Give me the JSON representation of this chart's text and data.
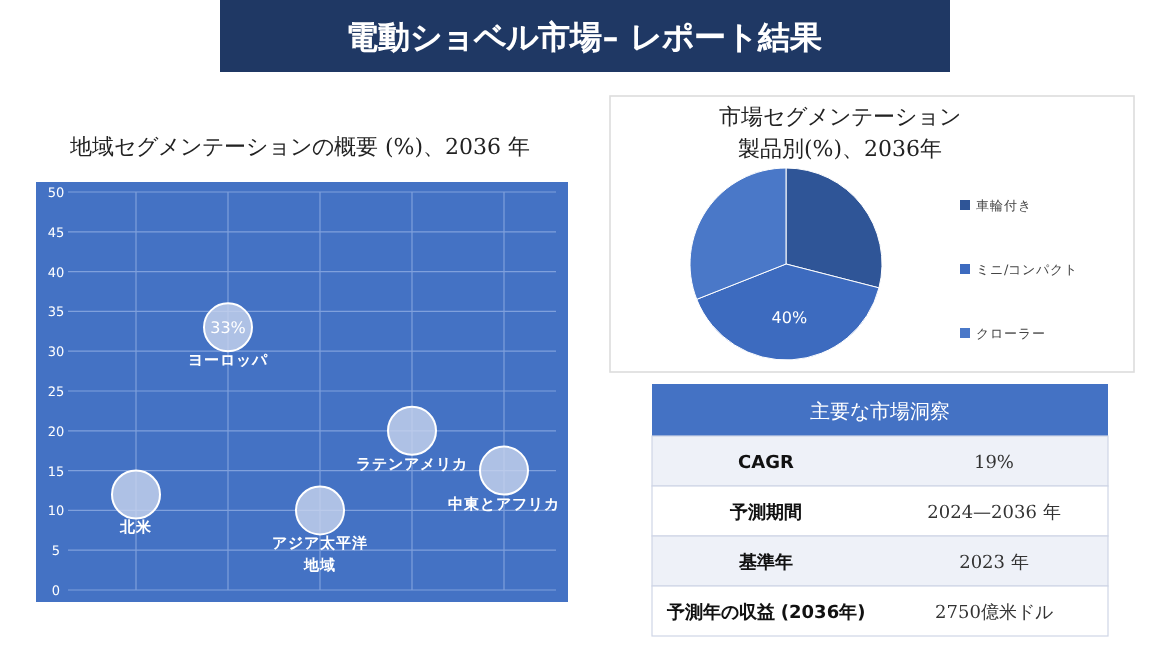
{
  "chart_data": [
    {
      "type": "other",
      "title": "電動ショベル市場– レポート結果"
    },
    {
      "type": "scatter",
      "title": "地域セグメンテーションの概要 (%)、2036 年",
      "categories": [
        null,
        null,
        null,
        null,
        null
      ],
      "series": [
        {
          "name": "北米",
          "color": "#c9d5ee",
          "values": [
            12,
            null,
            null,
            null,
            null
          ]
        },
        {
          "name": "ヨーロッパ",
          "color": "#c9d5ee",
          "values": [
            null,
            33,
            null,
            null,
            null
          ],
          "value_labels": [
            null,
            "33%",
            null,
            null,
            null
          ]
        },
        {
          "name": "アジア太平洋地域",
          "color": "#c9d5ee",
          "values": [
            null,
            null,
            10,
            null,
            null
          ]
        },
        {
          "name": "ラテンアメリカ",
          "color": "#c9d5ee",
          "values": [
            null,
            null,
            null,
            20,
            null
          ]
        },
        {
          "name": "中東とアフリカ",
          "color": "#c9d5ee",
          "values": [
            null,
            null,
            null,
            null,
            15
          ]
        }
      ],
      "ylim": [
        0,
        50
      ],
      "yticks": [
        0,
        5,
        10,
        15,
        20,
        25,
        30,
        35,
        40,
        45,
        50
      ],
      "grid": true,
      "marker": "circle"
    },
    {
      "type": "pie",
      "title": "市場セグメンテーション",
      "subtitle": "製品別(%)、2036年",
      "categories": [
        "車輪付き",
        "ミニ/コンパクト",
        "クローラー"
      ],
      "values": [
        29,
        40,
        31
      ],
      "colors": [
        "#2f5597",
        "#3d6bbf",
        "#4a78c8"
      ],
      "value_labels": [
        null,
        "40%",
        null
      ],
      "legend": "right"
    },
    {
      "type": "other",
      "title": "主要な市場洞察",
      "annotations": [
        "CAGR",
        "19%",
        "予測期間",
        "2024—2036 年",
        "基準年",
        "2023 年",
        "予測年の収益 (2036年)",
        "2750億米ドル"
      ]
    }
  ]
}
